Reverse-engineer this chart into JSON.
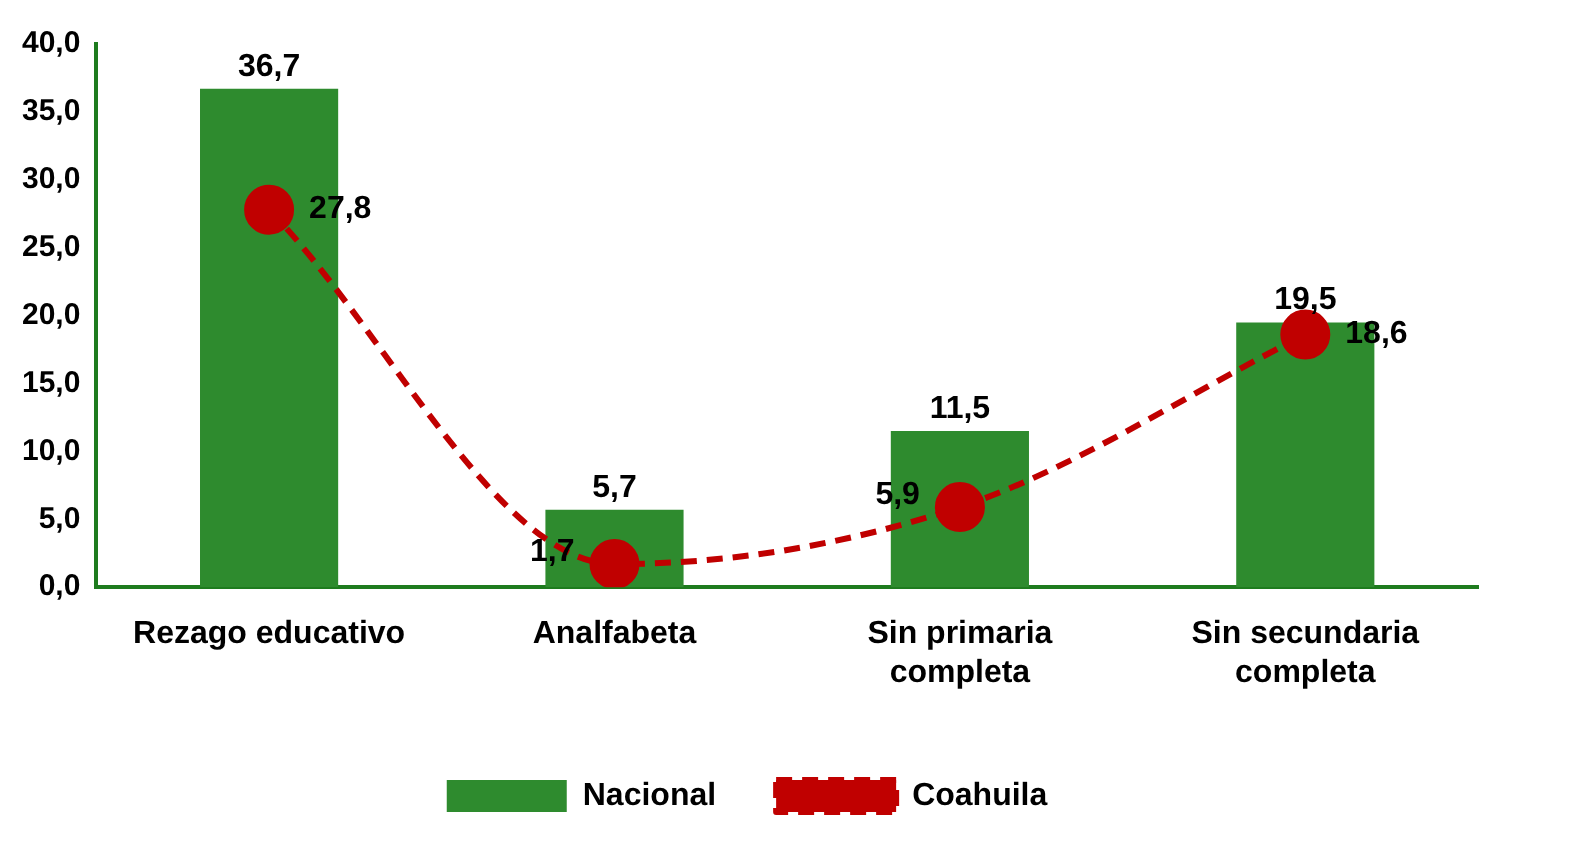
{
  "chart_data": {
    "type": "bar",
    "categories": [
      "Rezago educativo",
      "Analfabeta",
      "Sin primaria completa",
      "Sin secundaria completa"
    ],
    "series": [
      {
        "name": "Nacional",
        "color": "#2e8b2e",
        "values": [
          36.7,
          5.7,
          11.5,
          19.5
        ],
        "value_labels": [
          "36,7",
          "5,7",
          "11,5",
          "19,5"
        ]
      },
      {
        "name": "Coahuila",
        "type": "line",
        "color": "#c00000",
        "values": [
          27.8,
          1.7,
          5.9,
          18.6
        ],
        "value_labels": [
          "27,8",
          "1,7",
          "5,9",
          "18,6"
        ],
        "marker": "circle",
        "line_style": "dashed"
      }
    ],
    "ylim": [
      0,
      40
    ],
    "yticks": [
      {
        "value": 0,
        "label": "0,0"
      },
      {
        "value": 5,
        "label": "5,0"
      },
      {
        "value": 10,
        "label": "10,0"
      },
      {
        "value": 15,
        "label": "15,0"
      },
      {
        "value": 20,
        "label": "20,0"
      },
      {
        "value": 25,
        "label": "25,0"
      },
      {
        "value": 30,
        "label": "30,0"
      },
      {
        "value": 35,
        "label": "35,0"
      },
      {
        "value": 40,
        "label": "40,0"
      }
    ],
    "grid": false,
    "legend": "bottom"
  }
}
